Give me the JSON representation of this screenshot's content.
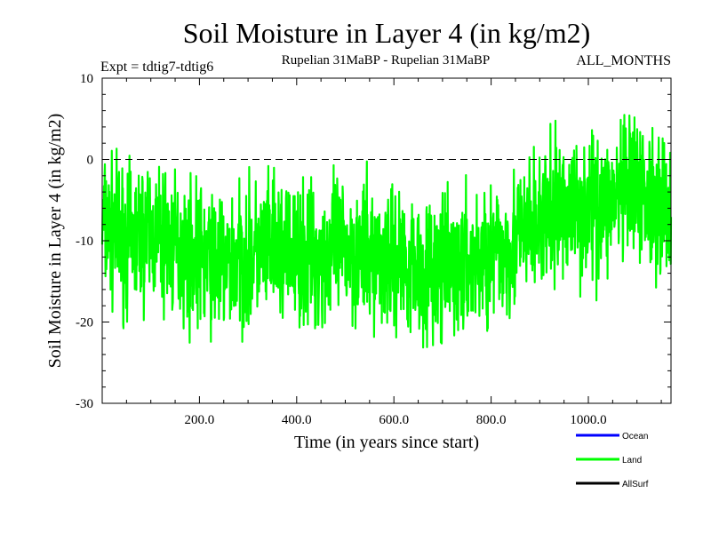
{
  "header": {
    "title": "Soil Moisture in Layer 4 (in kg/m2)",
    "expt": "Expt = tdtig7-tdtig6",
    "period": "Rupelian  31MaBP - Rupelian  31MaBP",
    "months": "ALL_MONTHS"
  },
  "chart_data": {
    "type": "line",
    "title": "Soil Moisture in Layer 4 (in kg/m2)",
    "xlabel": "Time (in years since start)",
    "ylabel": "Soil Moisture in Layer 4 (in kg/m2)",
    "xlim": [
      0,
      1170
    ],
    "ylim": [
      -30,
      10
    ],
    "xticks": [
      200,
      400,
      600,
      800,
      1000
    ],
    "xtick_labels": [
      "200.0",
      "400.0",
      "600.0",
      "800.0",
      "1000.0"
    ],
    "yticks": [
      -30,
      -20,
      -10,
      0,
      10
    ],
    "ytick_labels": [
      "-30",
      "-20",
      "-10",
      "0",
      "10"
    ],
    "reference_line": 0,
    "legend": [
      {
        "name": "Ocean",
        "color": "#0000ff"
      },
      {
        "name": "Land",
        "color": "#00ff00"
      },
      {
        "name": "AllSurf",
        "color": "#000000"
      }
    ],
    "series": [
      {
        "name": "Land",
        "color": "#00ff00",
        "x": [
          0,
          50,
          100,
          150,
          200,
          250,
          300,
          350,
          400,
          450,
          500,
          550,
          600,
          650,
          700,
          750,
          800,
          850,
          900,
          950,
          1000,
          1050,
          1100,
          1150,
          1170
        ],
        "values": [
          -8,
          -10,
          -9,
          -11,
          -12,
          -13,
          -12,
          -11,
          -12,
          -12,
          -11,
          -12,
          -12,
          -13,
          -14,
          -13,
          -12,
          -10,
          -8,
          -6,
          -6,
          -5,
          -4,
          -5,
          -6
        ]
      }
    ]
  }
}
